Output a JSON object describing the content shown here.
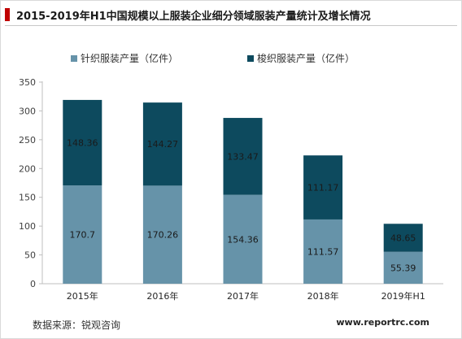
{
  "title": "2015-2019年H1中国规模以上服装企业细分领域服装产量统计及增长情况",
  "source": "数据来源：锐观咨询",
  "website": "www.reportrc.com",
  "colors": {
    "knit": "#6693a9",
    "woven": "#0d4a5e",
    "accent": "#c00000"
  },
  "chart_data": {
    "type": "bar",
    "stacked": true,
    "categories": [
      "2015年",
      "2016年",
      "2017年",
      "2018年",
      "2019年H1"
    ],
    "series": [
      {
        "name": "针织服装产量（亿件）",
        "values": [
          170.7,
          170.26,
          154.36,
          111.57,
          55.39
        ],
        "labels": [
          "170.7",
          "170.26",
          "154.36",
          "111.57",
          "55.39"
        ]
      },
      {
        "name": "梭织服装产量（亿件）",
        "values": [
          148.36,
          144.27,
          133.47,
          111.17,
          48.65
        ],
        "labels": [
          "148.36",
          "144.27",
          "133.47",
          "111.17",
          "48.65"
        ]
      }
    ],
    "ylim": [
      0,
      350
    ],
    "yticks": [
      "0",
      "50",
      "100",
      "150",
      "200",
      "250",
      "300",
      "350"
    ],
    "legend_position": "top",
    "grid": false
  }
}
